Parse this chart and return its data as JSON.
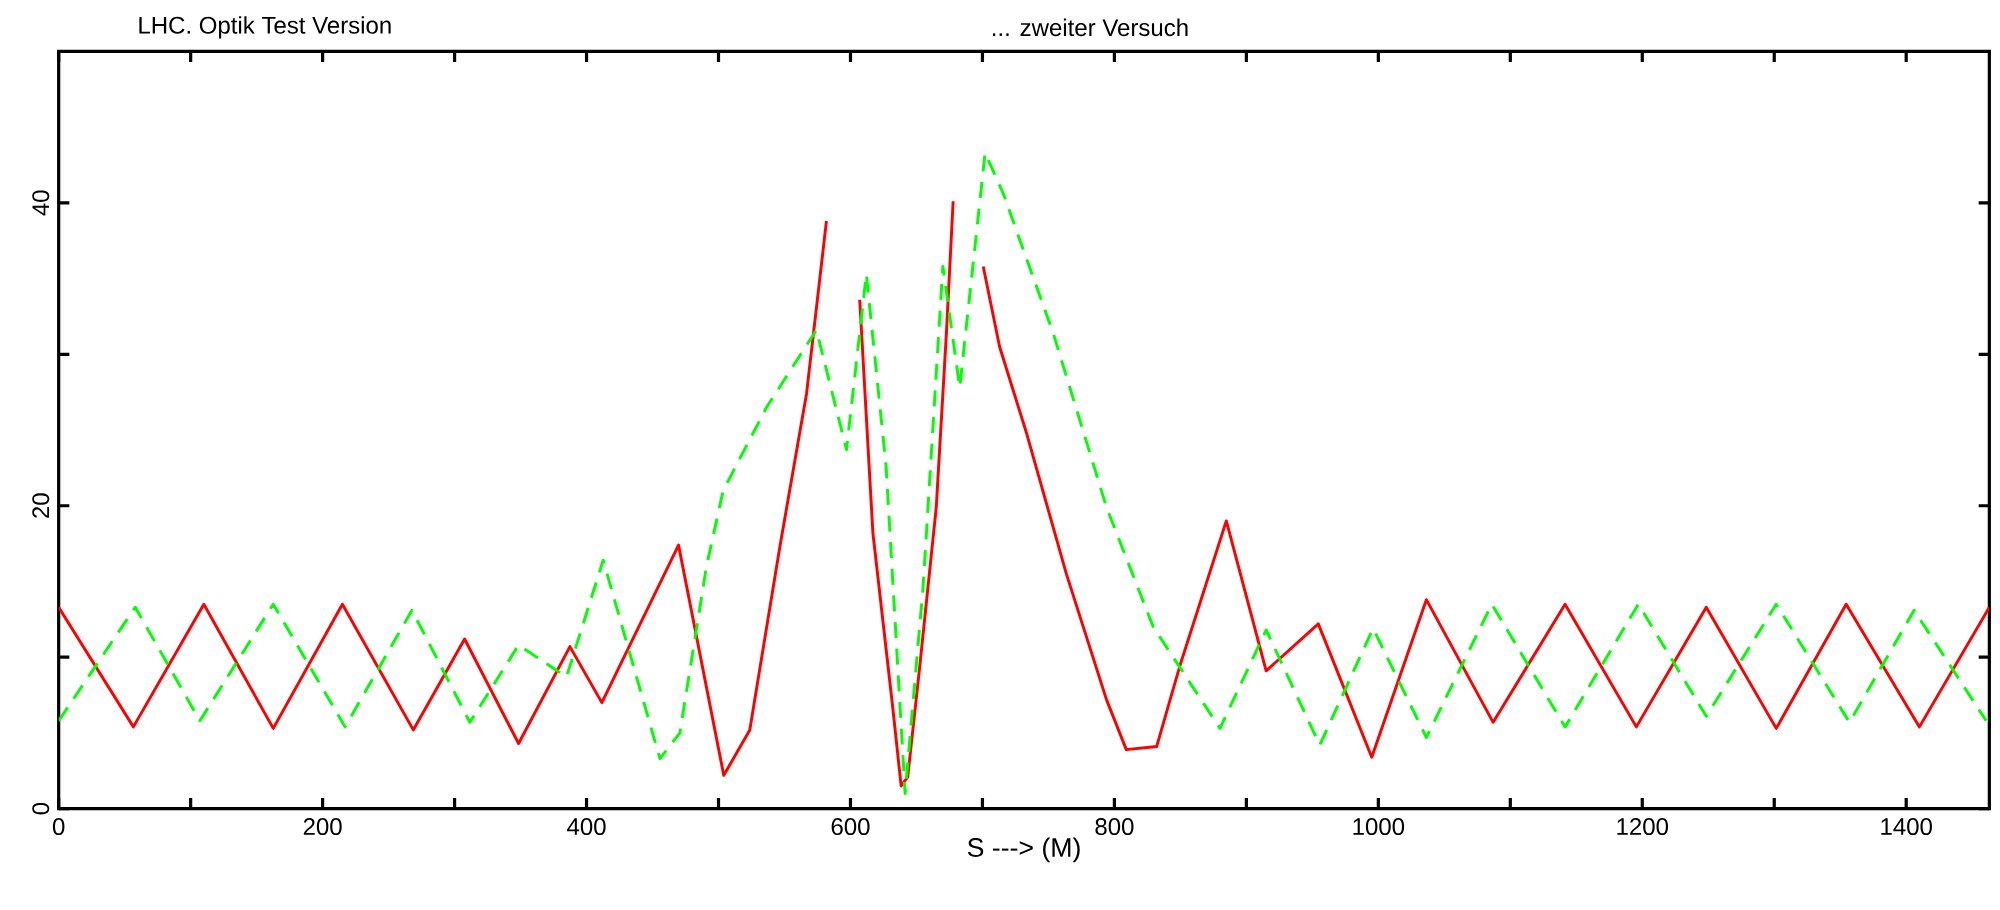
{
  "chart_data": {
    "type": "line",
    "title": "LHC. Optik Test Version",
    "subtitle": "... zweiter Versuch",
    "xlabel": "S  --->  (M)",
    "xlim": [
      0,
      1463
    ],
    "ylim": [
      0,
      50
    ],
    "xticks": [
      0,
      {
        "value": 100,
        "label": null
      },
      200,
      {
        "value": 300,
        "label": null
      },
      400,
      {
        "value": 500,
        "label": null
      },
      600,
      {
        "value": 700,
        "label": null
      },
      800,
      {
        "value": 900,
        "label": null
      },
      1000,
      {
        "value": 1100,
        "label": null
      },
      1200,
      {
        "value": 1300,
        "label": null
      },
      1400
    ],
    "yticks": [
      0,
      {
        "value": 10,
        "label": null
      },
      20,
      {
        "value": 30,
        "label": null
      },
      40
    ],
    "series": [
      {
        "color": "#ff0000",
        "line_style": "solid",
        "x": [
          0,
          56.6,
          110,
          162.6,
          215,
          268.7,
          307.6,
          348.5,
          387.4,
          411.6,
          469.7,
          504,
          523.7,
          546.5,
          566.7,
          581.8,
          589,
          601,
          607,
          617,
          632,
          638.4,
          643.4,
          652.5,
          665,
          672.7,
          677.8,
          682.8,
          690.5,
          700.6,
          713,
          733.4,
          763.6,
          794,
          809,
          832,
          849.5,
          884.8,
          915,
          954.5,
          995,
          1036.4,
          1087,
          1141.5,
          1195.5,
          1248.5,
          1301.5,
          1354.5,
          1410,
          1463
        ],
        "values": [
          13.3,
          5.4,
          13.5,
          5.3,
          13.5,
          5.2,
          11.2,
          4.3,
          10.7,
          7.0,
          17.4,
          2.2,
          5.2,
          17.3,
          27.4,
          38.8,
          null,
          null,
          33.6,
          18.2,
          6.7,
          1.5,
          2.1,
          9.4,
          19.9,
          31.4,
          40.1,
          null,
          null,
          35.8,
          30.5,
          24.8,
          15.5,
          7.2,
          3.9,
          4.1,
          9.4,
          19.0,
          9.1,
          12.2,
          3.4,
          13.8,
          5.7,
          13.5,
          5.4,
          13.3,
          5.3,
          13.5,
          5.4,
          13.3
        ]
      },
      {
        "color": "#00ff00",
        "line_style": "dashed",
        "x": [
          0,
          58,
          107,
          162.6,
          217,
          267.7,
          311.6,
          348.5,
          384.8,
          412.6,
          455.6,
          470.7,
          490.9,
          503.5,
          536.4,
          574.2,
          597,
          612,
          627,
          641.4,
          655,
          670,
          682.8,
          702,
          715.8,
          753.6,
          794,
          829.4,
          880,
          915,
          955.6,
          996,
          1036.4,
          1086,
          1141.5,
          1197,
          1248.5,
          1301.5,
          1357,
          1406,
          1460.6
        ],
        "values": [
          5.8,
          13.3,
          5.8,
          13.5,
          5.4,
          13.1,
          5.7,
          10.8,
          8.7,
          16.4,
          3.3,
          5.0,
          16.0,
          21.0,
          26.5,
          31.6,
          23.7,
          35.3,
          22.6,
          1.0,
          14.6,
          35.8,
          27.8,
          43.3,
          40.6,
          31.4,
          19.9,
          12.0,
          5.3,
          11.8,
          4.2,
          11.9,
          4.7,
          13.5,
          5.4,
          13.5,
          6.1,
          13.5,
          5.7,
          13.1,
          5.8
        ]
      }
    ]
  }
}
